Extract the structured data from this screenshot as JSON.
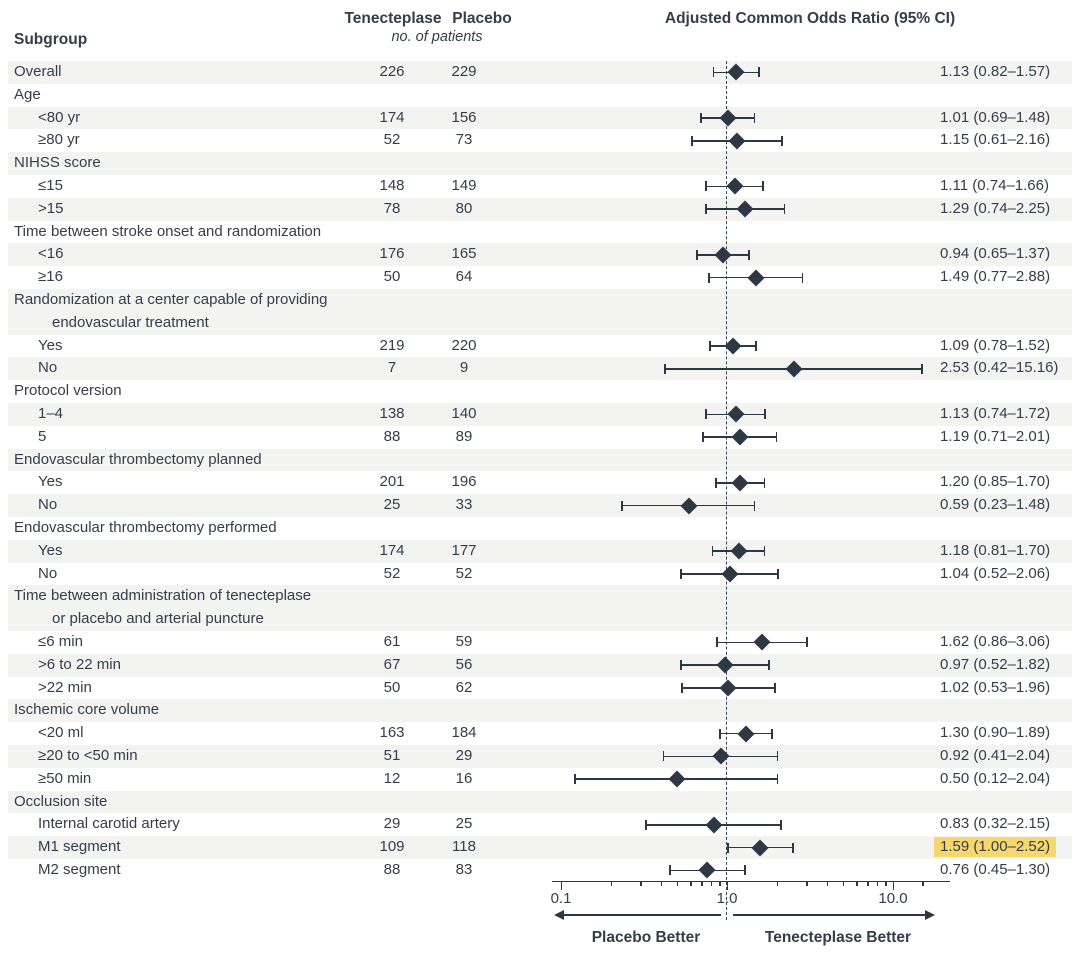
{
  "header": {
    "subgroup_label": "Subgroup",
    "col_tenecteplase": "Tenecteplase",
    "col_placebo": "Placebo",
    "col_units": "no. of patients",
    "or_title": "Adjusted Common Odds Ratio (95% CI)"
  },
  "colors": {
    "ink": "#333d4b",
    "marker": "#2d3844",
    "row_stripe": "#f3f4f2",
    "highlight": "#f5d76d"
  },
  "chart_data": {
    "type": "scatter",
    "subtype": "forest-plot",
    "title": "Adjusted Common Odds Ratio (95% CI)",
    "x_axis": {
      "scale": "log",
      "tick_labels": [
        "0.1",
        "1.0",
        "10.0"
      ],
      "tick_values": [
        0.1,
        1.0,
        10.0
      ],
      "minor_tick_values": [
        0.2,
        0.3,
        0.4,
        0.5,
        0.6,
        0.7,
        0.8,
        0.9,
        2,
        3,
        4,
        5,
        6,
        7,
        8,
        9,
        15
      ],
      "range": [
        0.1,
        22
      ],
      "reference_line": 1.0,
      "grid": false
    },
    "footer": {
      "left_arrow_label": "Placebo Better",
      "right_arrow_label": "Tenecteplase Better"
    },
    "rows": [
      {
        "type": "data",
        "label": "Overall",
        "indent": 0,
        "tnk": "226",
        "pbo": "229",
        "or": 1.13,
        "lo": 0.82,
        "hi": 1.57,
        "or_text": "1.13 (0.82–1.57)",
        "highlight": false
      },
      {
        "type": "group",
        "label": "Age"
      },
      {
        "type": "data",
        "label": "<80 yr",
        "indent": 1,
        "tnk": "174",
        "pbo": "156",
        "or": 1.01,
        "lo": 0.69,
        "hi": 1.48,
        "or_text": "1.01 (0.69–1.48)",
        "highlight": false
      },
      {
        "type": "data",
        "label": "≥80 yr",
        "indent": 1,
        "tnk": "52",
        "pbo": "73",
        "or": 1.15,
        "lo": 0.61,
        "hi": 2.16,
        "or_text": "1.15 (0.61–2.16)",
        "highlight": false
      },
      {
        "type": "group",
        "label": "NIHSS score"
      },
      {
        "type": "data",
        "label": "≤15",
        "indent": 1,
        "tnk": "148",
        "pbo": "149",
        "or": 1.11,
        "lo": 0.74,
        "hi": 1.66,
        "or_text": "1.11 (0.74–1.66)",
        "highlight": false
      },
      {
        "type": "data",
        "label": ">15",
        "indent": 1,
        "tnk": "78",
        "pbo": "80",
        "or": 1.29,
        "lo": 0.74,
        "hi": 2.25,
        "or_text": "1.29 (0.74–2.25)",
        "highlight": false
      },
      {
        "type": "group",
        "label": "Time between stroke onset and randomization"
      },
      {
        "type": "data",
        "label": "<16",
        "indent": 1,
        "tnk": "176",
        "pbo": "165",
        "or": 0.94,
        "lo": 0.65,
        "hi": 1.37,
        "or_text": "0.94 (0.65–1.37)",
        "highlight": false
      },
      {
        "type": "data",
        "label": "≥16",
        "indent": 1,
        "tnk": "50",
        "pbo": "64",
        "or": 1.49,
        "lo": 0.77,
        "hi": 2.88,
        "or_text": "1.49 (0.77–2.88)",
        "highlight": false
      },
      {
        "type": "group",
        "label": "Randomization at a center capable of providing",
        "label2": "endovascular treatment"
      },
      {
        "type": "data",
        "label": "Yes",
        "indent": 1,
        "tnk": "219",
        "pbo": "220",
        "or": 1.09,
        "lo": 0.78,
        "hi": 1.52,
        "or_text": "1.09 (0.78–1.52)",
        "highlight": false
      },
      {
        "type": "data",
        "label": "No",
        "indent": 1,
        "tnk": "7",
        "pbo": "9",
        "or": 2.53,
        "lo": 0.42,
        "hi": 15.16,
        "or_text": "2.53 (0.42–15.16)",
        "highlight": false
      },
      {
        "type": "group",
        "label": "Protocol version"
      },
      {
        "type": "data",
        "label": "1–4",
        "indent": 1,
        "tnk": "138",
        "pbo": "140",
        "or": 1.13,
        "lo": 0.74,
        "hi": 1.72,
        "or_text": "1.13 (0.74–1.72)",
        "highlight": false
      },
      {
        "type": "data",
        "label": "5",
        "indent": 1,
        "tnk": "88",
        "pbo": "89",
        "or": 1.19,
        "lo": 0.71,
        "hi": 2.01,
        "or_text": "1.19 (0.71–2.01)",
        "highlight": false
      },
      {
        "type": "group",
        "label": "Endovascular thrombectomy planned"
      },
      {
        "type": "data",
        "label": "Yes",
        "indent": 1,
        "tnk": "201",
        "pbo": "196",
        "or": 1.2,
        "lo": 0.85,
        "hi": 1.7,
        "or_text": "1.20 (0.85–1.70)",
        "highlight": false
      },
      {
        "type": "data",
        "label": "No",
        "indent": 1,
        "tnk": "25",
        "pbo": "33",
        "or": 0.59,
        "lo": 0.23,
        "hi": 1.48,
        "or_text": "0.59 (0.23–1.48)",
        "highlight": false
      },
      {
        "type": "group",
        "label": "Endovascular thrombectomy performed"
      },
      {
        "type": "data",
        "label": "Yes",
        "indent": 1,
        "tnk": "174",
        "pbo": "177",
        "or": 1.18,
        "lo": 0.81,
        "hi": 1.7,
        "or_text": "1.18 (0.81–1.70)",
        "highlight": false
      },
      {
        "type": "data",
        "label": "No",
        "indent": 1,
        "tnk": "52",
        "pbo": "52",
        "or": 1.04,
        "lo": 0.52,
        "hi": 2.06,
        "or_text": "1.04 (0.52–2.06)",
        "highlight": false
      },
      {
        "type": "group",
        "label": "Time between administration of tenecteplase",
        "label2": "or placebo and arterial puncture"
      },
      {
        "type": "data",
        "label": "≤6 min",
        "indent": 1,
        "tnk": "61",
        "pbo": "59",
        "or": 1.62,
        "lo": 0.86,
        "hi": 3.06,
        "or_text": "1.62 (0.86–3.06)",
        "highlight": false
      },
      {
        "type": "data",
        "label": ">6 to 22 min",
        "indent": 1,
        "tnk": "67",
        "pbo": "56",
        "or": 0.97,
        "lo": 0.52,
        "hi": 1.82,
        "or_text": "0.97 (0.52–1.82)",
        "highlight": false
      },
      {
        "type": "data",
        "label": ">22 min",
        "indent": 1,
        "tnk": "50",
        "pbo": "62",
        "or": 1.02,
        "lo": 0.53,
        "hi": 1.96,
        "or_text": "1.02 (0.53–1.96)",
        "highlight": false
      },
      {
        "type": "group",
        "label": "Ischemic core volume"
      },
      {
        "type": "data",
        "label": "<20 ml",
        "indent": 1,
        "tnk": "163",
        "pbo": "184",
        "or": 1.3,
        "lo": 0.9,
        "hi": 1.89,
        "or_text": "1.30 (0.90–1.89)",
        "highlight": false
      },
      {
        "type": "data",
        "label": "≥20 to <50 min",
        "indent": 1,
        "tnk": "51",
        "pbo": "29",
        "or": 0.92,
        "lo": 0.41,
        "hi": 2.04,
        "or_text": "0.92 (0.41–2.04)",
        "highlight": false
      },
      {
        "type": "data",
        "label": "≥50 min",
        "indent": 1,
        "tnk": "12",
        "pbo": "16",
        "or": 0.5,
        "lo": 0.12,
        "hi": 2.04,
        "or_text": "0.50 (0.12–2.04)",
        "highlight": false
      },
      {
        "type": "group",
        "label": "Occlusion site"
      },
      {
        "type": "data",
        "label": "Internal carotid artery",
        "indent": 1,
        "tnk": "29",
        "pbo": "25",
        "or": 0.83,
        "lo": 0.32,
        "hi": 2.15,
        "or_text": "0.83 (0.32–2.15)",
        "highlight": false
      },
      {
        "type": "data",
        "label": "M1 segment",
        "indent": 1,
        "tnk": "109",
        "pbo": "118",
        "or": 1.59,
        "lo": 1.0,
        "hi": 2.52,
        "or_text": "1.59 (1.00–2.52)",
        "highlight": true
      },
      {
        "type": "data",
        "label": "M2 segment",
        "indent": 1,
        "tnk": "88",
        "pbo": "83",
        "or": 0.76,
        "lo": 0.45,
        "hi": 1.3,
        "or_text": "0.76 (0.45–1.30)",
        "highlight": false
      }
    ]
  }
}
